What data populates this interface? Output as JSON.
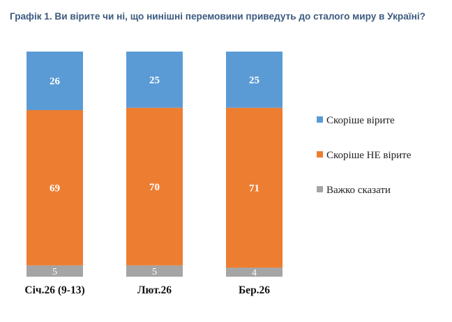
{
  "chart_data": {
    "type": "bar",
    "stacked": true,
    "title": "Графік 1. Ви вірите чи ні, що нинішні перемовини приведуть до сталого миру в Україні?",
    "categories": [
      "Січ.26 (9-13)",
      "Лют.26",
      "Бер.26"
    ],
    "series": [
      {
        "name": "Скоріше вірите",
        "values": [
          26,
          25,
          25
        ],
        "color": "#5b9bd5"
      },
      {
        "name": "Скоріше НЕ вірите",
        "values": [
          69,
          70,
          71
        ],
        "color": "#ed7d31"
      },
      {
        "name": "Важко сказати",
        "values": [
          5,
          5,
          4
        ],
        "color": "#a5a5a5"
      }
    ],
    "ylim": [
      0,
      100
    ],
    "legend_position": "right"
  }
}
